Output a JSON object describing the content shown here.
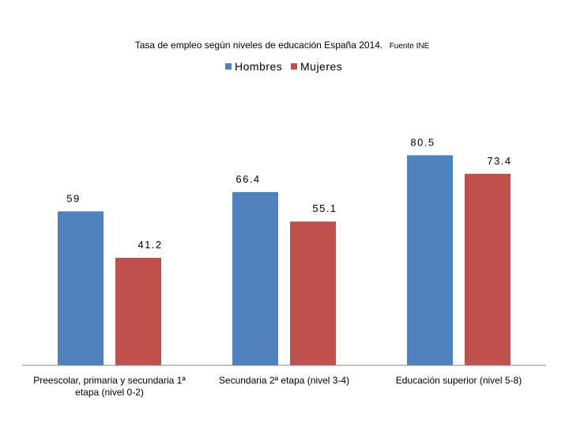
{
  "chart_data": {
    "type": "bar",
    "title": "Tasa de empleo según niveles de educación España 2014.",
    "subtitle": "Fuente INE",
    "categories": [
      [
        "Preescolar, primaria y secundaria 1ª",
        "etapa (nivel 0-2)"
      ],
      [
        "Secundaria 2ª etapa (nivel 3-4)"
      ],
      [
        "Educación superior (nivel 5-8)"
      ]
    ],
    "series": [
      {
        "name": "Hombres",
        "values": [
          59,
          66.4,
          80.5
        ],
        "color": "#4F81BD"
      },
      {
        "name": "Mujeres",
        "values": [
          41.2,
          55.1,
          73.4
        ],
        "color": "#C0504D"
      }
    ],
    "ylim": [
      0,
      100
    ],
    "xlabel": "",
    "ylabel": "",
    "grid": false,
    "legend_position": "top-center"
  }
}
